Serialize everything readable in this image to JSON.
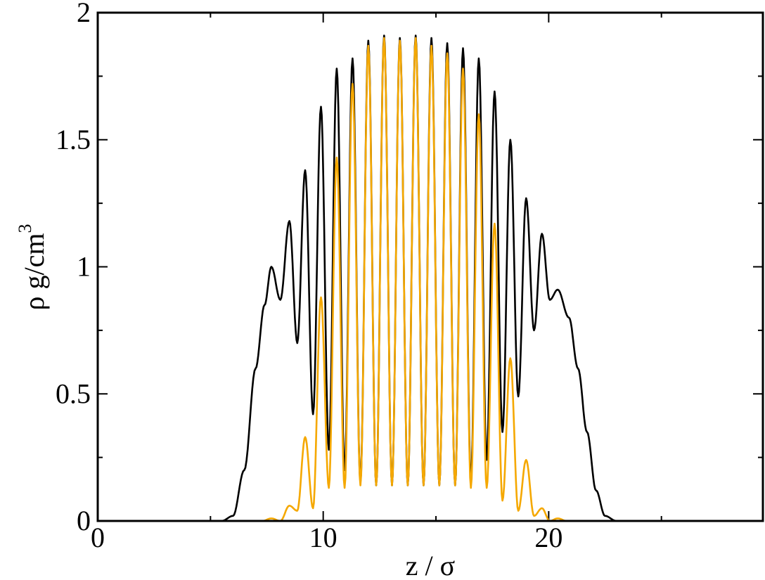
{
  "chart_data": {
    "type": "line",
    "title": "",
    "xlabel": "z / σ",
    "ylabel_main": "ρ g/cm",
    "ylabel_sup": "3",
    "xlim": [
      0,
      29.5
    ],
    "ylim": [
      0,
      2
    ],
    "x_ticks": [
      0,
      10,
      20
    ],
    "x_tick_labels": [
      "0",
      "10",
      "20"
    ],
    "y_ticks": [
      0,
      0.5,
      1,
      1.5,
      2
    ],
    "y_tick_labels": [
      "0",
      "0.5",
      "1",
      "1.5",
      "2"
    ],
    "grid": false,
    "legend": "none",
    "series": [
      {
        "color": "#000000",
        "peaks": [
          {
            "x": 7.7,
            "y": 1.0
          },
          {
            "x": 8.5,
            "y": 1.18
          },
          {
            "x": 9.2,
            "y": 1.38
          },
          {
            "x": 9.9,
            "y": 1.63
          },
          {
            "x": 10.6,
            "y": 1.78
          },
          {
            "x": 11.3,
            "y": 1.82
          },
          {
            "x": 12.0,
            "y": 1.89
          },
          {
            "x": 12.7,
            "y": 1.91
          },
          {
            "x": 13.4,
            "y": 1.9
          },
          {
            "x": 14.1,
            "y": 1.91
          },
          {
            "x": 14.8,
            "y": 1.9
          },
          {
            "x": 15.5,
            "y": 1.88
          },
          {
            "x": 16.2,
            "y": 1.86
          },
          {
            "x": 16.9,
            "y": 1.82
          },
          {
            "x": 17.6,
            "y": 1.69
          },
          {
            "x": 18.3,
            "y": 1.5
          },
          {
            "x": 19.0,
            "y": 1.27
          },
          {
            "x": 19.7,
            "y": 1.13
          },
          {
            "x": 20.4,
            "y": 0.91
          }
        ],
        "troughs": [
          {
            "x": 8.1,
            "y": 0.87
          },
          {
            "x": 8.85,
            "y": 0.7
          },
          {
            "x": 9.55,
            "y": 0.42
          },
          {
            "x": 10.25,
            "y": 0.28
          },
          {
            "x": 10.95,
            "y": 0.2
          },
          {
            "x": 11.65,
            "y": 0.15
          },
          {
            "x": 12.35,
            "y": 0.14
          },
          {
            "x": 13.05,
            "y": 0.14
          },
          {
            "x": 13.75,
            "y": 0.14
          },
          {
            "x": 14.45,
            "y": 0.14
          },
          {
            "x": 15.15,
            "y": 0.14
          },
          {
            "x": 15.85,
            "y": 0.14
          },
          {
            "x": 16.55,
            "y": 0.16
          },
          {
            "x": 17.25,
            "y": 0.24
          },
          {
            "x": 17.95,
            "y": 0.35
          },
          {
            "x": 18.65,
            "y": 0.49
          },
          {
            "x": 19.35,
            "y": 0.75
          },
          {
            "x": 20.05,
            "y": 0.87
          }
        ],
        "envelope_start": [
          {
            "x": 5.5,
            "y": 0.0
          },
          {
            "x": 6.0,
            "y": 0.02
          },
          {
            "x": 6.5,
            "y": 0.2
          },
          {
            "x": 7.0,
            "y": 0.6
          },
          {
            "x": 7.4,
            "y": 0.85
          }
        ],
        "envelope_end": [
          {
            "x": 20.9,
            "y": 0.8
          },
          {
            "x": 21.3,
            "y": 0.6
          },
          {
            "x": 21.7,
            "y": 0.35
          },
          {
            "x": 22.1,
            "y": 0.12
          },
          {
            "x": 22.5,
            "y": 0.02
          },
          {
            "x": 23.0,
            "y": 0.0
          }
        ]
      },
      {
        "color": "#f5a800",
        "peaks": [
          {
            "x": 7.7,
            "y": 0.01
          },
          {
            "x": 8.5,
            "y": 0.06
          },
          {
            "x": 9.2,
            "y": 0.33
          },
          {
            "x": 9.9,
            "y": 0.88
          },
          {
            "x": 10.6,
            "y": 1.43
          },
          {
            "x": 11.3,
            "y": 1.72
          },
          {
            "x": 12.0,
            "y": 1.87
          },
          {
            "x": 12.7,
            "y": 1.9
          },
          {
            "x": 13.4,
            "y": 1.89
          },
          {
            "x": 14.1,
            "y": 1.9
          },
          {
            "x": 14.8,
            "y": 1.87
          },
          {
            "x": 15.5,
            "y": 1.84
          },
          {
            "x": 16.2,
            "y": 1.78
          },
          {
            "x": 16.9,
            "y": 1.6
          },
          {
            "x": 17.6,
            "y": 1.17
          },
          {
            "x": 18.3,
            "y": 0.64
          },
          {
            "x": 19.0,
            "y": 0.24
          },
          {
            "x": 19.7,
            "y": 0.05
          },
          {
            "x": 20.4,
            "y": 0.01
          }
        ],
        "troughs": [
          {
            "x": 8.1,
            "y": 0.0
          },
          {
            "x": 8.85,
            "y": 0.04
          },
          {
            "x": 9.55,
            "y": 0.05
          },
          {
            "x": 10.25,
            "y": 0.13
          },
          {
            "x": 10.95,
            "y": 0.13
          },
          {
            "x": 11.65,
            "y": 0.14
          },
          {
            "x": 12.35,
            "y": 0.14
          },
          {
            "x": 13.05,
            "y": 0.14
          },
          {
            "x": 13.75,
            "y": 0.14
          },
          {
            "x": 14.45,
            "y": 0.14
          },
          {
            "x": 15.15,
            "y": 0.14
          },
          {
            "x": 15.85,
            "y": 0.14
          },
          {
            "x": 16.55,
            "y": 0.13
          },
          {
            "x": 17.25,
            "y": 0.13
          },
          {
            "x": 17.95,
            "y": 0.08
          },
          {
            "x": 18.65,
            "y": 0.04
          },
          {
            "x": 19.35,
            "y": 0.02
          },
          {
            "x": 20.05,
            "y": 0.0
          }
        ],
        "envelope_start": [
          {
            "x": 6.5,
            "y": 0.0
          },
          {
            "x": 7.3,
            "y": 0.0
          }
        ],
        "envelope_end": [
          {
            "x": 20.8,
            "y": 0.0
          },
          {
            "x": 23.0,
            "y": 0.0
          }
        ]
      }
    ]
  }
}
